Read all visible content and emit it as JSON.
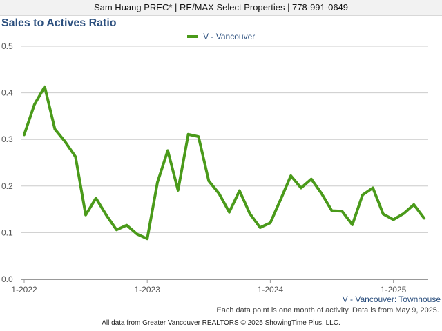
{
  "header": {
    "agent_text": "Sam Huang PREC* | RE/MAX Select Properties | 778-991-0649"
  },
  "chart_data": {
    "type": "line",
    "title": "Sales to Actives Ratio",
    "series": [
      {
        "name": "V - Vancouver",
        "color": "#4a9a1a",
        "x": [
          "2022-01",
          "2022-02",
          "2022-03",
          "2022-04",
          "2022-05",
          "2022-06",
          "2022-07",
          "2022-08",
          "2022-09",
          "2022-10",
          "2022-11",
          "2022-12",
          "2023-01",
          "2023-02",
          "2023-03",
          "2023-04",
          "2023-05",
          "2023-06",
          "2023-07",
          "2023-08",
          "2023-09",
          "2023-10",
          "2023-11",
          "2023-12",
          "2024-01",
          "2024-02",
          "2024-03",
          "2024-04",
          "2024-05",
          "2024-06",
          "2024-07",
          "2024-08",
          "2024-09",
          "2024-10",
          "2024-11",
          "2024-12",
          "2025-01",
          "2025-02",
          "2025-03",
          "2025-04"
        ],
        "values": [
          0.31,
          0.375,
          0.413,
          0.322,
          0.295,
          0.263,
          0.138,
          0.174,
          0.138,
          0.106,
          0.116,
          0.097,
          0.087,
          0.208,
          0.276,
          0.191,
          0.311,
          0.306,
          0.211,
          0.184,
          0.144,
          0.19,
          0.141,
          0.111,
          0.121,
          0.171,
          0.222,
          0.196,
          0.215,
          0.184,
          0.147,
          0.146,
          0.117,
          0.181,
          0.196,
          0.14,
          0.128,
          0.141,
          0.16,
          0.131
        ]
      }
    ],
    "y_ticks": [
      "0.0",
      "0.1",
      "0.2",
      "0.3",
      "0.4",
      "0.5"
    ],
    "x_ticks": [
      "1-2022",
      "1-2023",
      "1-2024",
      "1-2025"
    ],
    "ylim": [
      0,
      0.5
    ],
    "grid": true,
    "legend_position": "top-center",
    "subtitle": "V - Vancouver: Townhouse",
    "note": "Each data point is one month of activity. Data is from May 9, 2025.",
    "footer": "All data from Greater Vancouver REALTORS © 2025 ShowingTime Plus, LLC."
  }
}
